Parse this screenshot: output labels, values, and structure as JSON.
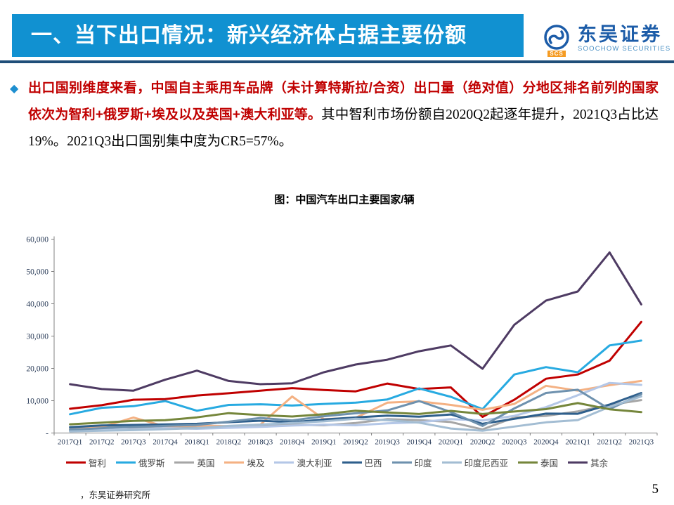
{
  "header": {
    "title": "一、当下出口情况：新兴经济体占据主要份额"
  },
  "logo": {
    "cn": "东吴证券",
    "en": "SOOCHOW SECURITIES",
    "badge": "SCS"
  },
  "icons": {
    "bullet_icon": "◆",
    "logo_swirl_icon": "S-swirl in circle"
  },
  "paragraph": {
    "red_text": "出口国别维度来看，中国自主乘用车品牌（未计算特斯拉/合资）出口量（绝对值）分地区排名前列的国家依次为智利+俄罗斯+埃及以及英国+澳大利亚等。",
    "black_text_1": "其中智利市场份额自2020Q2起逐年提升，2021Q3占比达19%。",
    "black_text_2": "2021Q3出口国别集中度为CR5=57%。"
  },
  "footer": {
    "source": "，东吴证券研究所",
    "page": "5"
  },
  "colors": {
    "banner_blue": "#1191D1",
    "rule_navy": "#1F4E79",
    "accent_red": "#C00000",
    "axis_label": "#1F3250",
    "axis_line": "#808080"
  },
  "chart_data": {
    "type": "line",
    "title": "图：中国汽车出口主要国家/辆",
    "xlabel": "",
    "ylabel": "",
    "ylim": [
      0,
      60000
    ],
    "grid": false,
    "legend_position": "bottom",
    "y_tick_labels": [
      "-",
      "10,000",
      "20,000",
      "30,000",
      "40,000",
      "50,000",
      "60,000"
    ],
    "categories": [
      "2017Q1",
      "2017Q2",
      "2017Q3",
      "2017Q4",
      "2018Q1",
      "2018Q2",
      "2018Q3",
      "2018Q4",
      "2019Q1",
      "2019Q2",
      "2019Q3",
      "2019Q4",
      "2020Q1",
      "2020Q2",
      "2020Q3",
      "2020Q4",
      "2021Q1",
      "2021Q2",
      "2021Q3"
    ],
    "series": [
      {
        "name": "智利",
        "color": "#C00000",
        "values": [
          7500,
          8600,
          10300,
          10500,
          11600,
          12300,
          13100,
          13900,
          13300,
          12900,
          15300,
          13600,
          14100,
          5000,
          10300,
          16800,
          18100,
          22400,
          34400
        ]
      },
      {
        "name": "俄罗斯",
        "color": "#27AAE1",
        "values": [
          5800,
          7800,
          8300,
          9900,
          6900,
          8700,
          8900,
          8500,
          9000,
          9400,
          10400,
          13800,
          11200,
          7400,
          18100,
          20400,
          18800,
          27100,
          28600
        ]
      },
      {
        "name": "英国",
        "color": "#A6A6A6",
        "values": [
          1400,
          2100,
          1700,
          2100,
          1600,
          1800,
          2100,
          2600,
          2400,
          3100,
          4300,
          4000,
          3400,
          1100,
          4800,
          5300,
          6700,
          8700,
          10200
        ]
      },
      {
        "name": "埃及",
        "color": "#F4B183",
        "values": [
          1000,
          1800,
          4800,
          2000,
          2300,
          2100,
          2600,
          11300,
          4300,
          4700,
          9400,
          9800,
          8700,
          7200,
          9000,
          14600,
          13100,
          14800,
          16100
        ]
      },
      {
        "name": "澳大利亚",
        "color": "#B4C7E7",
        "values": [
          700,
          900,
          1100,
          1500,
          1300,
          1600,
          1900,
          2300,
          2600,
          2400,
          3000,
          3300,
          4300,
          3900,
          5300,
          8000,
          11700,
          15500,
          14900
        ]
      },
      {
        "name": "巴西",
        "color": "#2E5F8C",
        "values": [
          1800,
          2350,
          2500,
          2650,
          2850,
          3350,
          3800,
          3300,
          4200,
          4800,
          5400,
          5050,
          5750,
          2850,
          4400,
          6000,
          5950,
          8800,
          12400
        ]
      },
      {
        "name": "印度",
        "color": "#6E91AE",
        "values": [
          1000,
          1500,
          1900,
          2200,
          2500,
          3500,
          4650,
          3900,
          5200,
          6100,
          7000,
          9900,
          6500,
          2200,
          7600,
          12400,
          13400,
          7400,
          12000
        ]
      },
      {
        "name": "印度尼西亚",
        "color": "#A3BDD3",
        "values": [
          500,
          700,
          900,
          1200,
          1500,
          2200,
          2600,
          3100,
          3600,
          4400,
          3950,
          3200,
          1400,
          700,
          2000,
          3300,
          4000,
          8100,
          11300
        ]
      },
      {
        "name": "泰国",
        "color": "#75863B",
        "values": [
          2700,
          3200,
          3750,
          3950,
          4850,
          6150,
          5550,
          5100,
          5800,
          6900,
          6350,
          5900,
          6850,
          5900,
          6650,
          7400,
          9250,
          7350,
          6450
        ]
      },
      {
        "name": "其余",
        "color": "#4E3B63",
        "values": [
          15100,
          13600,
          13100,
          16500,
          19300,
          16100,
          15100,
          15400,
          18800,
          21200,
          22700,
          25300,
          27100,
          19900,
          33500,
          41000,
          43800,
          55900,
          39800
        ]
      }
    ]
  }
}
